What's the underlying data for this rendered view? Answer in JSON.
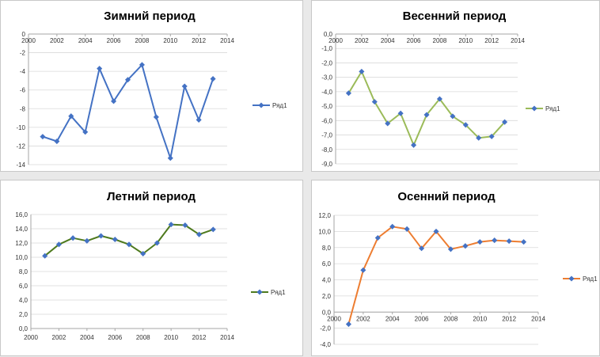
{
  "chart_data": [
    {
      "type": "line",
      "title": "Зимний период",
      "x": [
        2001,
        2002,
        2003,
        2004,
        2005,
        2006,
        2007,
        2008,
        2009,
        2010,
        2011,
        2012,
        2013
      ],
      "series": [
        {
          "name": "Ряд1",
          "values": [
            -11.0,
            -11.5,
            -8.8,
            -10.5,
            -3.7,
            -7.2,
            -4.9,
            -3.3,
            -8.9,
            -13.3,
            -5.6,
            -9.2,
            -4.8
          ]
        }
      ],
      "xlim": [
        2000,
        2014
      ],
      "ylim": [
        -14,
        0
      ],
      "xticks": [
        "2000",
        "2002",
        "2004",
        "2006",
        "2008",
        "2010",
        "2012",
        "2014"
      ],
      "yticks": [
        "0",
        "-2",
        "-4",
        "-6",
        "-8",
        "-10",
        "-12",
        "-14"
      ],
      "color": "#4472c4",
      "marker_color": "#4472c4",
      "legend": "right",
      "grid": true
    },
    {
      "type": "line",
      "title": "Весенний период",
      "x": [
        2001,
        2002,
        2003,
        2004,
        2005,
        2006,
        2007,
        2008,
        2009,
        2010,
        2011,
        2012,
        2013
      ],
      "series": [
        {
          "name": "Ряд1",
          "values": [
            -4.1,
            -2.6,
            -4.7,
            -6.2,
            -5.5,
            -7.7,
            -5.6,
            -4.5,
            -5.7,
            -6.3,
            -7.2,
            -7.1,
            -6.1
          ]
        }
      ],
      "xlim": [
        2000,
        2014
      ],
      "ylim": [
        -9,
        0
      ],
      "xticks": [
        "2000",
        "2002",
        "2004",
        "2006",
        "2008",
        "2010",
        "2012",
        "2014"
      ],
      "yticks": [
        "0,0",
        "-1,0",
        "-2,0",
        "-3,0",
        "-4,0",
        "-5,0",
        "-6,0",
        "-7,0",
        "-8,0",
        "-9,0"
      ],
      "color": "#9bbb59",
      "marker_color": "#4472c4",
      "legend": "right",
      "grid": true
    },
    {
      "type": "line",
      "title": "Летний период",
      "x": [
        2001,
        2002,
        2003,
        2004,
        2005,
        2006,
        2007,
        2008,
        2009,
        2010,
        2011,
        2012,
        2013
      ],
      "series": [
        {
          "name": "Ряд1",
          "values": [
            10.2,
            11.8,
            12.7,
            12.3,
            13.0,
            12.5,
            11.8,
            10.5,
            12.0,
            14.6,
            14.5,
            13.2,
            13.9
          ]
        }
      ],
      "xlim": [
        2000,
        2014
      ],
      "ylim": [
        0,
        16
      ],
      "xticks": [
        "2000",
        "2002",
        "2004",
        "2006",
        "2008",
        "2010",
        "2012",
        "2014"
      ],
      "yticks": [
        "16,0",
        "14,0",
        "12,0",
        "10,0",
        "8,0",
        "6,0",
        "4,0",
        "2,0",
        "0,0"
      ],
      "color": "#4e7a1e",
      "marker_color": "#4472c4",
      "legend": "right",
      "grid": true
    },
    {
      "type": "line",
      "title": "Осенний период",
      "x": [
        2001,
        2002,
        2003,
        2004,
        2005,
        2006,
        2007,
        2008,
        2009,
        2010,
        2011,
        2012,
        2013
      ],
      "series": [
        {
          "name": "Ряд1",
          "values": [
            -1.5,
            5.2,
            9.2,
            10.6,
            10.3,
            7.9,
            10.0,
            7.8,
            8.2,
            8.7,
            8.9,
            8.8,
            8.7
          ]
        }
      ],
      "xlim": [
        2000,
        2014
      ],
      "ylim": [
        -4,
        12
      ],
      "xticks": [
        "2000",
        "2002",
        "2004",
        "2006",
        "2008",
        "2010",
        "2012",
        "2014"
      ],
      "yticks": [
        "12,0",
        "10,0",
        "8,0",
        "6,0",
        "4,0",
        "2,0",
        "0,0",
        "-2,0",
        "-4,0"
      ],
      "color": "#ed7d31",
      "marker_color": "#4472c4",
      "legend": "right",
      "grid": true
    }
  ]
}
